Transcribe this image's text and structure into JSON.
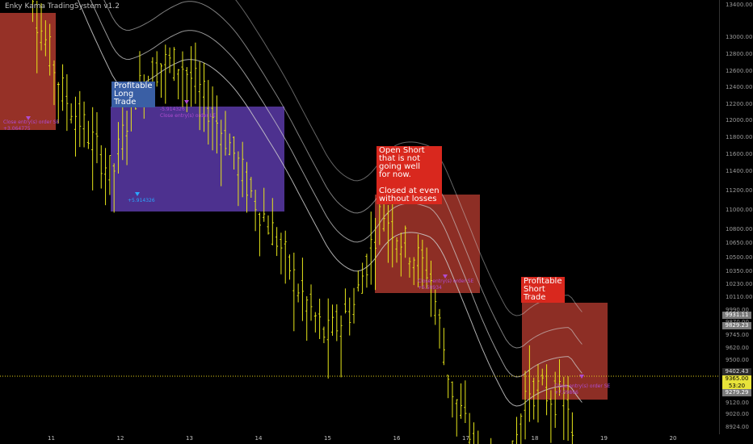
{
  "indicator": {
    "title": "Enky Kama TradingSystem v1.2"
  },
  "annotations": [
    {
      "id": "profitable-long",
      "text": "Profitable\nLong\nTrade",
      "color": "blue"
    },
    {
      "id": "open-short",
      "text": "Open Short\nthat is not\ngoing well\nfor now.\n\nClosed at even\nwithout losses",
      "color": "red"
    },
    {
      "id": "profitable-short",
      "text": "Profitable\nShort\nTrade",
      "color": "red"
    }
  ],
  "trade_labels": [
    {
      "text": "Close entry(s) order SE\n+3.064775",
      "color": "#b04cd0"
    },
    {
      "text": "-5.914326\nClose entry(s) order LE",
      "color": "#b04cd0"
    },
    {
      "text": "+5.914326",
      "color": "#2aa7ff"
    },
    {
      "text": "Close entry(s) order SE\n+6.58934",
      "color": "#b04cd0"
    },
    {
      "text": "Close entry(s) order SE\n+7.09866",
      "color": "#b04cd0"
    }
  ],
  "price_axis": {
    "ticks": [
      "13400.00",
      "13000.00",
      "12800.00",
      "12600.00",
      "12400.00",
      "12200.00",
      "12000.00",
      "11800.00",
      "11600.00",
      "11400.00",
      "11200.00",
      "11000.00",
      "10800.00",
      "10650.00",
      "10500.00",
      "10350.00",
      "10230.00",
      "10110.00",
      "9990.00",
      "9870.00",
      "9745.00",
      "9620.00",
      "9500.00",
      "9380.00",
      "9260.00",
      "9120.00",
      "9020.00",
      "8924.00"
    ],
    "tags": [
      {
        "text": "9931.11",
        "style": "grey"
      },
      {
        "text": "9829.23",
        "style": "grey"
      },
      {
        "text": "9402.43",
        "style": "dark"
      },
      {
        "text": "9365.00",
        "style": "yellow"
      },
      {
        "text": "53:20",
        "style": "yellow"
      },
      {
        "text": "9279.29",
        "style": "grey"
      }
    ]
  },
  "time_axis": {
    "ticks": [
      "11",
      "12",
      "13",
      "14",
      "15",
      "16",
      "17",
      "18",
      "19",
      "20"
    ]
  },
  "colors": {
    "candle": "#e6e61a",
    "band": "#cfcfcf",
    "long_box": "#5a3aa8",
    "short_box": "#b03a2e",
    "current_price_line": "#e6d21a"
  },
  "chart_data": {
    "type": "candlestick",
    "title": "",
    "x_ticks": [
      "11",
      "12",
      "13",
      "14",
      "15",
      "16",
      "17",
      "18",
      "19",
      "20"
    ],
    "y_range": [
      8900,
      13500
    ],
    "current_price": 9365.0,
    "close_path": [
      {
        "day": 10.5,
        "price": 13100
      },
      {
        "day": 10.8,
        "price": 12200
      },
      {
        "day": 11.2,
        "price": 11700
      },
      {
        "day": 11.5,
        "price": 11500
      },
      {
        "day": 11.9,
        "price": 11200
      },
      {
        "day": 12.2,
        "price": 11700
      },
      {
        "day": 12.6,
        "price": 11900
      },
      {
        "day": 12.9,
        "price": 11900
      },
      {
        "day": 13.2,
        "price": 11700
      },
      {
        "day": 13.6,
        "price": 11400
      },
      {
        "day": 13.9,
        "price": 11100
      },
      {
        "day": 14.3,
        "price": 10800
      },
      {
        "day": 14.6,
        "price": 10500
      },
      {
        "day": 15.0,
        "price": 10200
      },
      {
        "day": 15.4,
        "price": 10400
      },
      {
        "day": 15.8,
        "price": 11000
      },
      {
        "day": 16.1,
        "price": 10800
      },
      {
        "day": 16.5,
        "price": 10600
      },
      {
        "day": 16.8,
        "price": 9900
      },
      {
        "day": 17.2,
        "price": 9450
      },
      {
        "day": 17.6,
        "price": 9250
      },
      {
        "day": 17.9,
        "price": 9900
      },
      {
        "day": 18.2,
        "price": 9850
      },
      {
        "day": 18.5,
        "price": 9800
      },
      {
        "day": 18.6,
        "price": 9365
      }
    ]
  }
}
